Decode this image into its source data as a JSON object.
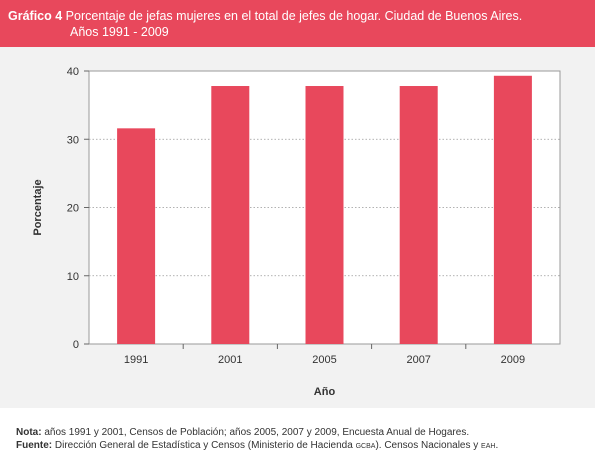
{
  "header": {
    "label": "Gráfico 4",
    "title_line1": "Porcentaje de jefas mujeres en el total de jefes de hogar. Ciudad de Buenos  Aires.",
    "title_line2": "Años 1991 - 2009"
  },
  "chart_data": {
    "type": "bar",
    "categories": [
      "1991",
      "2001",
      "2005",
      "2007",
      "2009"
    ],
    "values": [
      31.6,
      37.8,
      37.8,
      37.8,
      39.3
    ],
    "xlabel": "Año",
    "ylabel": "Porcentaje",
    "ylim": [
      0,
      40
    ],
    "yticks": [
      0,
      10,
      20,
      30,
      40
    ],
    "grid": true,
    "bar_color": "#e8485c",
    "legend": "none"
  },
  "notes": {
    "nota_label": "Nota:",
    "nota_text": " años 1991 y 2001, Censos de Población; años 2005, 2007 y 2009, Encuesta Anual de Hogares.",
    "fuente_label": "Fuente:",
    "fuente_text_a": " Dirección General de Estadística y Censos (Ministerio de Hacienda ",
    "fuente_small_1": "GCBA",
    "fuente_text_b": "). Censos Nacionales y ",
    "fuente_small_2": "EAH",
    "fuente_text_c": "."
  }
}
